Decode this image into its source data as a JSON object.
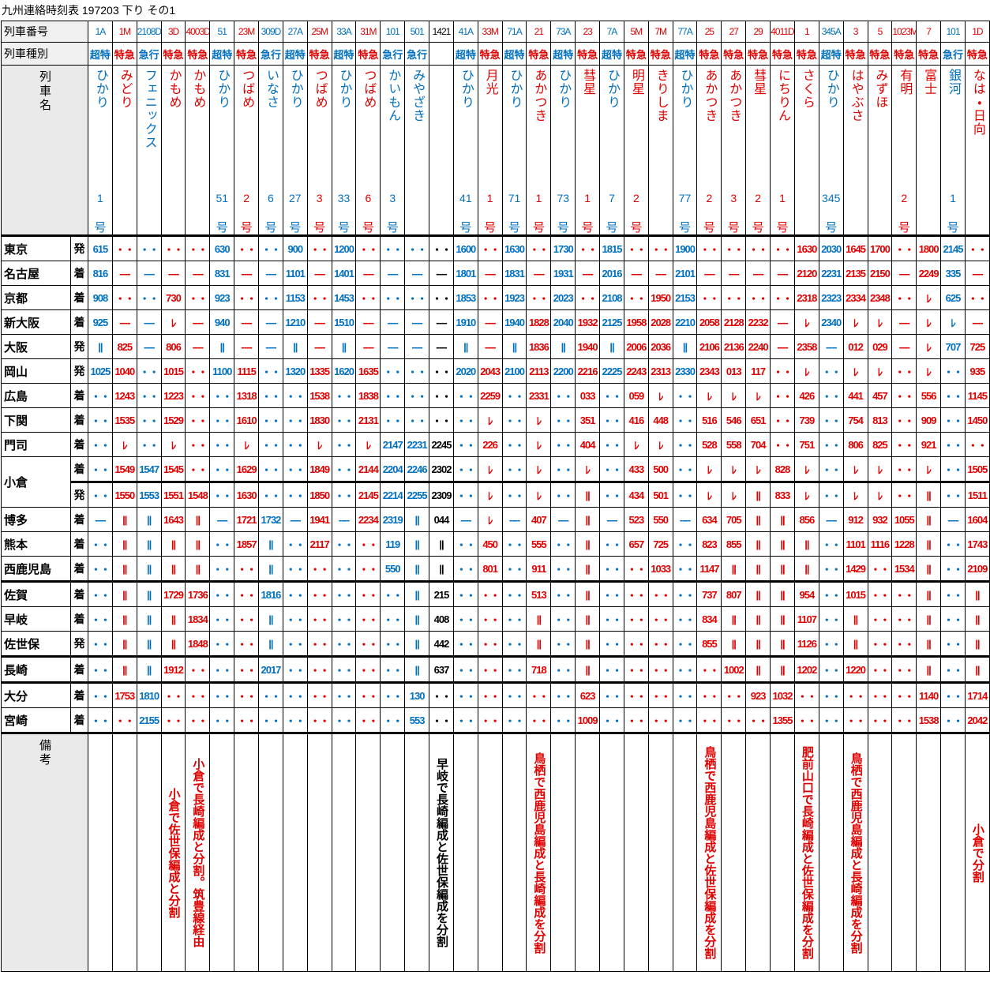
{
  "title": "九州連絡時刻表 197203 下り その1",
  "header": {
    "train_no_label": "列車番号",
    "type_label": "列車種別",
    "name_label": "列車名",
    "notes_label": "備考"
  },
  "stations": [
    {
      "name": "東京",
      "ad": "発"
    },
    {
      "name": "名古屋",
      "ad": "着"
    },
    {
      "name": "京都",
      "ad": "着"
    },
    {
      "name": "新大阪",
      "ad": "着"
    },
    {
      "name": "大阪",
      "ad": "発"
    },
    {
      "name": "岡山",
      "ad": "発"
    },
    {
      "name": "広島",
      "ad": "着"
    },
    {
      "name": "下関",
      "ad": "着"
    },
    {
      "name": "門司",
      "ad": "着"
    },
    {
      "name": "小倉",
      "ad": "着"
    },
    {
      "ad": "発"
    },
    {
      "name": "博多",
      "ad": "着"
    },
    {
      "name": "熊本",
      "ad": "着"
    },
    {
      "name": "西鹿児島",
      "ad": "着"
    },
    {
      "name": "佐賀",
      "ad": "着"
    },
    {
      "name": "早岐",
      "ad": "着"
    },
    {
      "name": "佐世保",
      "ad": "発"
    },
    {
      "name": "長崎",
      "ad": "着"
    },
    {
      "name": "大分",
      "ad": "着"
    },
    {
      "name": "宮崎",
      "ad": "着"
    }
  ],
  "trains": [
    {
      "no": "1A",
      "type": "超特",
      "name": "ひかり",
      "number": "1",
      "go": "号",
      "color": "#0070c0",
      "times": [
        "615",
        "816",
        "908",
        "925",
        "||",
        "1025",
        "・・",
        "・・",
        "・・",
        "・・",
        "・・",
        "----",
        "・・",
        "・・",
        "・・",
        "・・",
        "・・",
        "・・",
        "・・",
        "・・"
      ]
    },
    {
      "no": "1M",
      "type": "特急",
      "name": "みどり",
      "color": "#e00000",
      "times": [
        "・・",
        "----",
        "・・",
        "----",
        "825",
        "1040",
        "1243",
        "1535",
        "ﾚ",
        "1549",
        "1550",
        "||",
        "||",
        "||",
        "||",
        "||",
        "||",
        "||",
        "1753",
        "・・"
      ]
    },
    {
      "no": "2108D",
      "type": "急行",
      "name": "フェニックス",
      "color": "#0070c0",
      "times": [
        "・・",
        "----",
        "・・",
        "----",
        "----",
        "・・",
        "・・",
        "・・",
        "・・",
        "1547",
        "1553",
        "||",
        "||",
        "||",
        "||",
        "||",
        "||",
        "||",
        "1810",
        "2155"
      ]
    },
    {
      "no": "3D",
      "type": "特急",
      "name": "かもめ",
      "color": "#e00000",
      "times": [
        "・・",
        "----",
        "730",
        "ﾚ",
        "806",
        "1015",
        "1223",
        "1529",
        "ﾚ",
        "1545",
        "1551",
        "1643",
        "||",
        "||",
        "1729",
        "||",
        "||",
        "1912",
        "・・",
        "・・"
      ],
      "note": "小倉で佐世保編成と分割"
    },
    {
      "no": "4003D",
      "type": "特急",
      "name": "かもめ",
      "color": "#e00000",
      "times": [
        "・・",
        "----",
        "・・",
        "----",
        "----",
        "・・",
        "・・",
        "・・",
        "・・",
        "・・",
        "1548",
        "||",
        "||",
        "||",
        "1736",
        "1834",
        "1848",
        "・・",
        "・・",
        "・・"
      ],
      "note": "小倉で長崎編成と分割。筑豊線経由"
    },
    {
      "no": "51",
      "type": "超特",
      "name": "ひかり",
      "number": "51",
      "go": "号",
      "color": "#0070c0",
      "times": [
        "630",
        "831",
        "923",
        "940",
        "||",
        "1100",
        "・・",
        "・・",
        "・・",
        "・・",
        "・・",
        "----",
        "・・",
        "・・",
        "・・",
        "・・",
        "・・",
        "・・",
        "・・",
        "・・"
      ]
    },
    {
      "no": "23M",
      "type": "特急",
      "name": "つばめ",
      "number": "2",
      "go": "号",
      "color": "#e00000",
      "times": [
        "・・",
        "----",
        "・・",
        "----",
        "----",
        "1115",
        "1318",
        "1610",
        "ﾚ",
        "1629",
        "1630",
        "1721",
        "1857",
        "・・",
        "・・",
        "・・",
        "・・",
        "・・",
        "・・",
        "・・"
      ]
    },
    {
      "no": "309D",
      "type": "急行",
      "name": "いなさ",
      "number": "6",
      "go": "号",
      "color": "#0070c0",
      "times": [
        "・・",
        "----",
        "・・",
        "----",
        "----",
        "・・",
        "・・",
        "・・",
        "・・",
        "・・",
        "・・",
        "1732",
        "||",
        "||",
        "1816",
        "||",
        "||",
        "2017",
        "・・",
        "・・"
      ]
    },
    {
      "no": "27A",
      "type": "超特",
      "name": "ひかり",
      "number": "27",
      "go": "号",
      "color": "#0070c0",
      "times": [
        "900",
        "1101",
        "1153",
        "1210",
        "||",
        "1320",
        "・・",
        "・・",
        "・・",
        "・・",
        "・・",
        "----",
        "・・",
        "・・",
        "・・",
        "・・",
        "・・",
        "・・",
        "・・",
        "・・"
      ]
    },
    {
      "no": "25M",
      "type": "特急",
      "name": "つばめ",
      "number": "3",
      "go": "号",
      "color": "#e00000",
      "times": [
        "・・",
        "----",
        "・・",
        "----",
        "----",
        "1335",
        "1538",
        "1830",
        "ﾚ",
        "1849",
        "1850",
        "1941",
        "2117",
        "・・",
        "・・",
        "・・",
        "・・",
        "・・",
        "・・",
        "・・"
      ]
    },
    {
      "no": "33A",
      "type": "超特",
      "name": "ひかり",
      "number": "33",
      "go": "号",
      "color": "#0070c0",
      "times": [
        "1200",
        "1401",
        "1453",
        "1510",
        "||",
        "1620",
        "・・",
        "・・",
        "・・",
        "・・",
        "・・",
        "----",
        "・・",
        "・・",
        "・・",
        "・・",
        "・・",
        "・・",
        "・・",
        "・・"
      ]
    },
    {
      "no": "31M",
      "type": "特急",
      "name": "つばめ",
      "number": "6",
      "go": "号",
      "color": "#e00000",
      "times": [
        "・・",
        "----",
        "・・",
        "----",
        "----",
        "1635",
        "1838",
        "2131",
        "ﾚ",
        "2144",
        "2145",
        "2234",
        "・・",
        "・・",
        "・・",
        "・・",
        "・・",
        "・・",
        "・・",
        "・・"
      ]
    },
    {
      "no": "101",
      "type": "急行",
      "name": "かいもん",
      "number": "3",
      "go": "号",
      "color": "#0070c0",
      "times": [
        "・・",
        "----",
        "・・",
        "----",
        "----",
        "・・",
        "・・",
        "・・",
        "2147",
        "2204",
        "2214",
        "2319",
        "119",
        "550",
        "・・",
        "・・",
        "・・",
        "・・",
        "・・",
        "・・"
      ]
    },
    {
      "no": "501",
      "type": "急行",
      "name": "みやざき",
      "color": "#0070c0",
      "times": [
        "・・",
        "----",
        "・・",
        "----",
        "----",
        "・・",
        "・・",
        "・・",
        "2231",
        "2246",
        "2255",
        "||",
        "||",
        "||",
        "||",
        "||",
        "||",
        "||",
        "130",
        "553"
      ]
    },
    {
      "no": "1421",
      "color": "#000000",
      "times": [
        "・・",
        "----",
        "・・",
        "----",
        "----",
        "・・",
        "・・",
        "・・",
        "2245",
        "2302",
        "2309",
        "044",
        "||",
        "||",
        "215",
        "408",
        "442",
        "637",
        "・・",
        "・・"
      ],
      "note": "早岐で長崎編成と佐世保編成を分割"
    },
    {
      "no": "41A",
      "type": "超特",
      "name": "ひかり",
      "number": "41",
      "go": "号",
      "color": "#0070c0",
      "times": [
        "1600",
        "1801",
        "1853",
        "1910",
        "||",
        "2020",
        "・・",
        "・・",
        "・・",
        "・・",
        "・・",
        "----",
        "・・",
        "・・",
        "・・",
        "・・",
        "・・",
        "・・",
        "・・",
        "・・"
      ]
    },
    {
      "no": "33M",
      "type": "特急",
      "name": "月光",
      "number": "1",
      "go": "号",
      "color": "#e00000",
      "times": [
        "・・",
        "----",
        "・・",
        "----",
        "----",
        "2043",
        "2259",
        "ﾚ",
        "226",
        "ﾚ",
        "ﾚ",
        "ﾚ",
        "450",
        "801",
        "・・",
        "・・",
        "・・",
        "・・",
        "・・",
        "・・"
      ]
    },
    {
      "no": "71A",
      "type": "超特",
      "name": "ひかり",
      "number": "71",
      "go": "号",
      "color": "#0070c0",
      "times": [
        "1630",
        "1831",
        "1923",
        "1940",
        "||",
        "2100",
        "・・",
        "・・",
        "・・",
        "・・",
        "・・",
        "----",
        "・・",
        "・・",
        "・・",
        "・・",
        "・・",
        "・・",
        "・・",
        "・・"
      ]
    },
    {
      "no": "21",
      "type": "特急",
      "name": "あかつき",
      "number": "1",
      "go": "号",
      "color": "#e00000",
      "times": [
        "・・",
        "----",
        "・・",
        "1828",
        "1836",
        "2113",
        "2331",
        "ﾚ",
        "ﾚ",
        "ﾚ",
        "ﾚ",
        "407",
        "555",
        "911",
        "513",
        "||",
        "||",
        "718",
        "・・",
        "・・"
      ],
      "note": "鳥栖で西鹿児島編成と長崎編成を分割"
    },
    {
      "no": "73A",
      "type": "超特",
      "name": "ひかり",
      "number": "73",
      "go": "号",
      "color": "#0070c0",
      "times": [
        "1730",
        "1931",
        "2023",
        "2040",
        "||",
        "2200",
        "・・",
        "・・",
        "・・",
        "・・",
        "・・",
        "----",
        "・・",
        "・・",
        "・・",
        "・・",
        "・・",
        "・・",
        "・・",
        "・・"
      ]
    },
    {
      "no": "23",
      "type": "特急",
      "name": "彗星",
      "number": "1",
      "go": "号",
      "color": "#e00000",
      "times": [
        "・・",
        "----",
        "・・",
        "1932",
        "1940",
        "2216",
        "033",
        "351",
        "404",
        "ﾚ",
        "||",
        "||",
        "||",
        "||",
        "||",
        "||",
        "||",
        "||",
        "623",
        "1009"
      ]
    },
    {
      "no": "7A",
      "type": "超特",
      "name": "ひかり",
      "number": "7",
      "go": "号",
      "color": "#0070c0",
      "times": [
        "1815",
        "2016",
        "2108",
        "2125",
        "||",
        "2225",
        "・・",
        "・・",
        "・・",
        "・・",
        "・・",
        "----",
        "・・",
        "・・",
        "・・",
        "・・",
        "・・",
        "・・",
        "・・",
        "・・"
      ]
    },
    {
      "no": "5M",
      "type": "特急",
      "name": "明星",
      "number": "2",
      "go": "号",
      "color": "#e00000",
      "times": [
        "・・",
        "----",
        "・・",
        "1958",
        "2006",
        "2243",
        "059",
        "416",
        "ﾚ",
        "433",
        "434",
        "523",
        "657",
        "・・",
        "・・",
        "・・",
        "・・",
        "・・",
        "・・",
        "・・"
      ]
    },
    {
      "no": "7M",
      "type": "特急",
      "name": "きりしま",
      "color": "#e00000",
      "times": [
        "・・",
        "----",
        "1950",
        "2028",
        "2036",
        "2313",
        "ﾚ",
        "448",
        "ﾚ",
        "500",
        "501",
        "550",
        "725",
        "1033",
        "・・",
        "・・",
        "・・",
        "・・",
        "・・",
        "・・"
      ]
    },
    {
      "no": "77A",
      "type": "超特",
      "name": "ひかり",
      "number": "77",
      "go": "号",
      "color": "#0070c0",
      "times": [
        "1900",
        "2101",
        "2153",
        "2210",
        "||",
        "2330",
        "・・",
        "・・",
        "・・",
        "・・",
        "・・",
        "----",
        "・・",
        "・・",
        "・・",
        "・・",
        "・・",
        "・・",
        "・・",
        "・・"
      ]
    },
    {
      "no": "25",
      "type": "特急",
      "name": "あかつき",
      "number": "2",
      "go": "号",
      "color": "#e00000",
      "times": [
        "・・",
        "----",
        "・・",
        "2058",
        "2106",
        "2343",
        "ﾚ",
        "516",
        "528",
        "ﾚ",
        "ﾚ",
        "634",
        "823",
        "1147",
        "737",
        "834",
        "855",
        "・・",
        "・・",
        "・・"
      ],
      "note": "鳥栖で西鹿児島編成と佐世保編成を分割"
    },
    {
      "no": "27",
      "type": "特急",
      "name": "あかつき",
      "number": "3",
      "go": "号",
      "color": "#e00000",
      "times": [
        "・・",
        "----",
        "・・",
        "2128",
        "2136",
        "013",
        "ﾚ",
        "546",
        "558",
        "ﾚ",
        "ﾚ",
        "705",
        "855",
        "||",
        "807",
        "||",
        "||",
        "1002",
        "・・",
        "・・"
      ]
    },
    {
      "no": "29",
      "type": "特急",
      "name": "彗星",
      "number": "2",
      "go": "号",
      "color": "#e00000",
      "times": [
        "・・",
        "----",
        "・・",
        "2232",
        "2240",
        "117",
        "ﾚ",
        "651",
        "704",
        "ﾚ",
        "||",
        "||",
        "||",
        "||",
        "||",
        "||",
        "||",
        "||",
        "923",
        "・・"
      ]
    },
    {
      "no": "4011D",
      "type": "特急",
      "name": "にちりん",
      "number": "1",
      "go": "号",
      "color": "#e00000",
      "times": [
        "・・",
        "----",
        "・・",
        "----",
        "----",
        "・・",
        "・・",
        "・・",
        "・・",
        "828",
        "833",
        "||",
        "||",
        "||",
        "||",
        "||",
        "||",
        "||",
        "1032",
        "1355"
      ]
    },
    {
      "no": "1",
      "type": "特急",
      "name": "さくら",
      "color": "#e00000",
      "times": [
        "1630",
        "2120",
        "2318",
        "ﾚ",
        "2358",
        "ﾚ",
        "426",
        "739",
        "751",
        "ﾚ",
        "ﾚ",
        "856",
        "||",
        "||",
        "954",
        "1107",
        "1126",
        "1202",
        "・・",
        "・・"
      ],
      "note": "肥前山口で長崎編成と佐世保編成を分割"
    },
    {
      "no": "345A",
      "type": "超特",
      "name": "ひかり",
      "number": "345",
      "go": "号",
      "color": "#0070c0",
      "times": [
        "2030",
        "2231",
        "2323",
        "2340",
        "----",
        "・・",
        "・・",
        "・・",
        "・・",
        "・・",
        "・・",
        "----",
        "・・",
        "・・",
        "・・",
        "・・",
        "・・",
        "・・",
        "・・",
        "・・"
      ]
    },
    {
      "no": "3",
      "type": "特急",
      "name": "はやぶさ",
      "color": "#e00000",
      "times": [
        "1645",
        "2135",
        "2334",
        "ﾚ",
        "012",
        "ﾚ",
        "441",
        "754",
        "806",
        "ﾚ",
        "ﾚ",
        "912",
        "1101",
        "1429",
        "1015",
        "||",
        "||",
        "1220",
        "・・",
        "・・"
      ],
      "note": "鳥栖で西鹿児島編成と長崎編成を分割"
    },
    {
      "no": "5",
      "type": "特急",
      "name": "みずほ",
      "color": "#e00000",
      "times": [
        "1700",
        "2150",
        "2348",
        "ﾚ",
        "029",
        "ﾚ",
        "457",
        "813",
        "825",
        "ﾚ",
        "ﾚ",
        "932",
        "1116",
        "・・",
        "・・",
        "・・",
        "・・",
        "・・",
        "・・",
        "・・"
      ]
    },
    {
      "no": "1023M",
      "type": "特急",
      "name": "有明",
      "number": "2",
      "go": "号",
      "color": "#e00000",
      "times": [
        "・・",
        "----",
        "・・",
        "----",
        "----",
        "・・",
        "・・",
        "・・",
        "・・",
        "・・",
        "・・",
        "1055",
        "1228",
        "1534",
        "・・",
        "・・",
        "・・",
        "・・",
        "・・",
        "・・"
      ]
    },
    {
      "no": "7",
      "type": "特急",
      "name": "富士",
      "color": "#e00000",
      "times": [
        "1800",
        "2249",
        "ﾚ",
        "ﾚ",
        "ﾚ",
        "ﾚ",
        "556",
        "909",
        "921",
        "ﾚ",
        "||",
        "||",
        "||",
        "||",
        "||",
        "||",
        "||",
        "||",
        "1140",
        "1538"
      ]
    },
    {
      "no": "101",
      "type": "急行",
      "name": "銀河",
      "number": "1",
      "go": "号",
      "color": "#0070c0",
      "times": [
        "2145",
        "335",
        "625",
        "ﾚ",
        "707",
        "・・",
        "・・",
        "・・",
        "・・",
        "・・",
        "・・",
        "----",
        "・・",
        "・・",
        "・・",
        "・・",
        "・・",
        "・・",
        "・・",
        "・・"
      ]
    },
    {
      "no": "1D",
      "type": "特急",
      "name": "なは・日向",
      "color": "#e00000",
      "times": [
        "・・",
        "----",
        "・・",
        "----",
        "725",
        "935",
        "1145",
        "1450",
        "・・",
        "1505",
        "1511",
        "1604",
        "1743",
        "2109",
        "||",
        "||",
        "||",
        "||",
        "1714",
        "2042"
      ],
      "note": "小倉で分割"
    }
  ]
}
